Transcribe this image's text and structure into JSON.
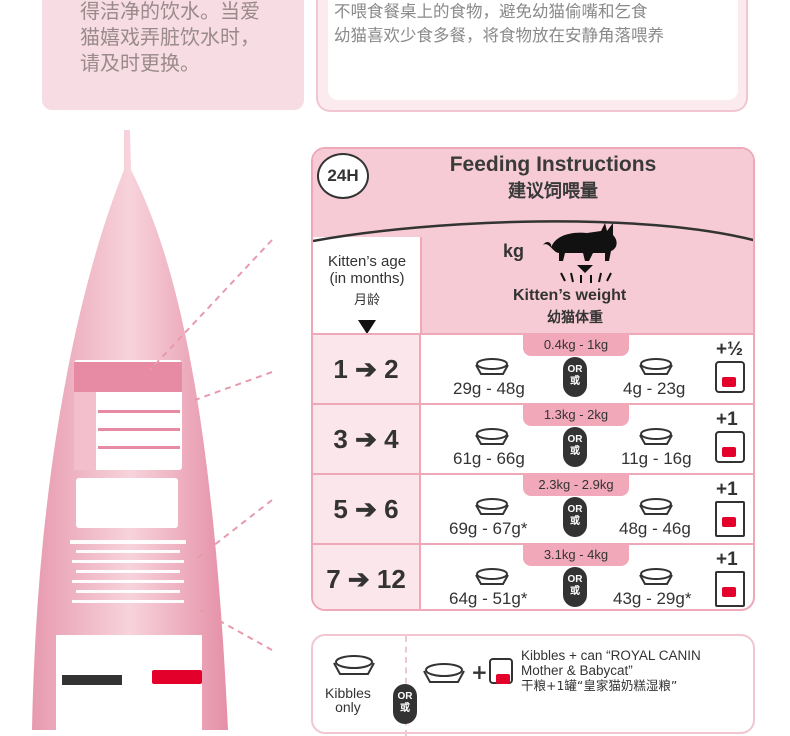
{
  "left_card_text": [
    "得洁净的饮水。当爱",
    "猫嬉戏弄脏饮水时，",
    "请及时更换。"
  ],
  "top_tips": [
    "不喂食餐桌上的食物，避免幼猫偷嘴和乞食",
    "幼猫喜欢少食多餐，将食物放在安静角落喂养"
  ],
  "feeding": {
    "badge": "24H",
    "title_en": "Feeding Instructions",
    "title_cn": "建议饲喂量",
    "unit": "kg",
    "age_label_en_1": "Kitten’s age",
    "age_label_en_2": "(in months)",
    "age_label_cn": "月龄",
    "weight_label_en": "Kitten’s weight",
    "weight_label_cn": "幼猫体重",
    "or_en": "OR",
    "or_cn": "或",
    "rows": [
      {
        "age": "1 ➔ 2",
        "weight": "0.4kg - 1kg",
        "dry_only": "29g - 48g",
        "dry_mixed": "4g - 23g",
        "plus": "+½"
      },
      {
        "age": "3 ➔ 4",
        "weight": "1.3kg - 2kg",
        "dry_only": "61g - 66g",
        "dry_mixed": "11g - 16g",
        "plus": "+1"
      },
      {
        "age": "5 ➔ 6",
        "weight": "2.3kg - 2.9kg",
        "dry_only": "69g - 67g*",
        "dry_mixed": "48g - 46g",
        "plus": "+1"
      },
      {
        "age": "7 ➔ 12",
        "weight": "3.1kg - 4kg",
        "dry_only": "64g - 51g*",
        "dry_mixed": "43g - 29g*",
        "plus": "+1"
      }
    ]
  },
  "legend": {
    "kibbles_only_1": "Kibbles",
    "kibbles_only_2": "only",
    "or_en": "OR",
    "or_cn": "或",
    "mixed_en_1": "Kibbles + can “ROYAL CANIN",
    "mixed_en_2": "Mother & Babycat”",
    "mixed_cn": "干粮+1罐“皇家猫奶糕湿粮”"
  },
  "colors": {
    "pink_light": "#f6cbd5",
    "pink_border": "#eea8b8",
    "pill": "#f1a9ba",
    "dark": "#333333",
    "brand_red": "#e3002b"
  }
}
